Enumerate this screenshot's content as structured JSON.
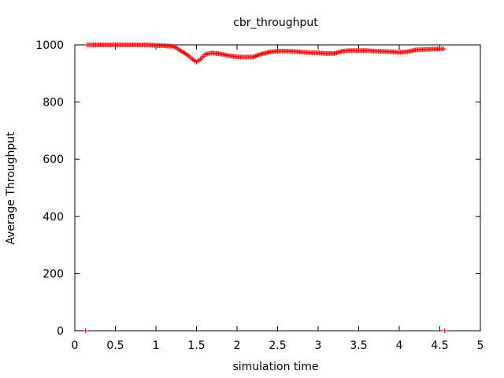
{
  "chart_data": {
    "type": "scatter",
    "title": "cbr_throughput",
    "xlabel": "simulation time",
    "ylabel": "Average Throughput",
    "xlim": [
      0,
      5
    ],
    "ylim": [
      0,
      1000
    ],
    "xticks": [
      "0",
      "0.5",
      "1",
      "1.5",
      "2",
      "2.5",
      "3",
      "3.5",
      "4",
      "4.5",
      "5"
    ],
    "yticks": [
      "0",
      "200",
      "400",
      "600",
      "800",
      "1000"
    ],
    "grid": false,
    "marker": "plus",
    "colors": {
      "series": "#ff0000",
      "axes": "#000000",
      "background": "#ffffff"
    },
    "series": [
      {
        "values": [
          {
            "x": 0.13,
            "y": 0
          },
          {
            "x": 0.15,
            "y": 1000
          },
          {
            "x": 0.2,
            "y": 1000
          },
          {
            "x": 0.3,
            "y": 1000
          },
          {
            "x": 0.4,
            "y": 1000
          },
          {
            "x": 0.5,
            "y": 1000
          },
          {
            "x": 0.6,
            "y": 1000
          },
          {
            "x": 0.7,
            "y": 1000
          },
          {
            "x": 0.8,
            "y": 1000
          },
          {
            "x": 0.9,
            "y": 1000
          },
          {
            "x": 1.0,
            "y": 998
          },
          {
            "x": 1.1,
            "y": 997
          },
          {
            "x": 1.2,
            "y": 995
          },
          {
            "x": 1.25,
            "y": 990
          },
          {
            "x": 1.3,
            "y": 980
          },
          {
            "x": 1.35,
            "y": 972
          },
          {
            "x": 1.4,
            "y": 962
          },
          {
            "x": 1.45,
            "y": 950
          },
          {
            "x": 1.5,
            "y": 940
          },
          {
            "x": 1.55,
            "y": 950
          },
          {
            "x": 1.6,
            "y": 965
          },
          {
            "x": 1.65,
            "y": 970
          },
          {
            "x": 1.7,
            "y": 972
          },
          {
            "x": 1.8,
            "y": 968
          },
          {
            "x": 1.9,
            "y": 962
          },
          {
            "x": 2.0,
            "y": 958
          },
          {
            "x": 2.1,
            "y": 957
          },
          {
            "x": 2.2,
            "y": 958
          },
          {
            "x": 2.3,
            "y": 968
          },
          {
            "x": 2.4,
            "y": 975
          },
          {
            "x": 2.5,
            "y": 978
          },
          {
            "x": 2.6,
            "y": 978
          },
          {
            "x": 2.7,
            "y": 977
          },
          {
            "x": 2.8,
            "y": 975
          },
          {
            "x": 2.9,
            "y": 973
          },
          {
            "x": 3.0,
            "y": 972
          },
          {
            "x": 3.1,
            "y": 970
          },
          {
            "x": 3.2,
            "y": 970
          },
          {
            "x": 3.3,
            "y": 978
          },
          {
            "x": 3.4,
            "y": 980
          },
          {
            "x": 3.5,
            "y": 980
          },
          {
            "x": 3.6,
            "y": 980
          },
          {
            "x": 3.7,
            "y": 978
          },
          {
            "x": 3.8,
            "y": 977
          },
          {
            "x": 3.9,
            "y": 976
          },
          {
            "x": 4.0,
            "y": 974
          },
          {
            "x": 4.1,
            "y": 976
          },
          {
            "x": 4.2,
            "y": 982
          },
          {
            "x": 4.3,
            "y": 984
          },
          {
            "x": 4.4,
            "y": 985
          },
          {
            "x": 4.5,
            "y": 986
          },
          {
            "x": 4.55,
            "y": 986
          },
          {
            "x": 4.56,
            "y": 0
          }
        ]
      }
    ]
  }
}
